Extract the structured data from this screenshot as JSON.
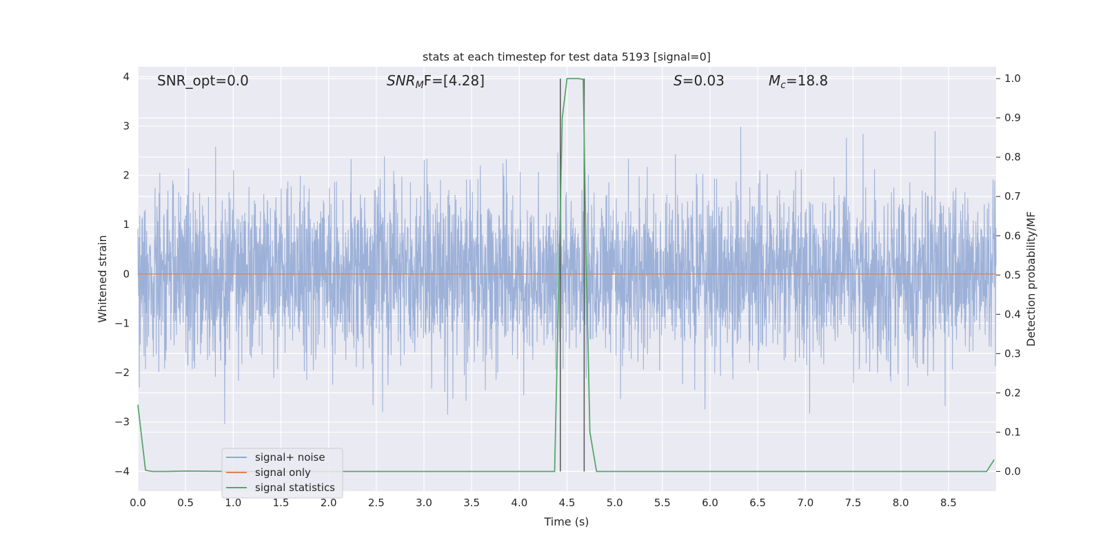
{
  "chart_data": {
    "type": "line",
    "title": "stats at each timestep for test data 5193 [signal=0]",
    "xlabel": "Time (s)",
    "ylabel_left": "Whitened strain",
    "ylabel_right": "Detection probability/MF",
    "xlim": [
      0.0,
      9.0
    ],
    "ylim_left": [
      -4.4,
      4.2
    ],
    "ylim_right": [
      -0.05,
      1.03
    ],
    "x_ticks": [
      "0.0",
      "0.5",
      "1.0",
      "1.5",
      "2.0",
      "2.5",
      "3.0",
      "3.5",
      "4.0",
      "4.5",
      "5.0",
      "5.5",
      "6.0",
      "6.5",
      "7.0",
      "7.5",
      "8.0",
      "8.5"
    ],
    "y_ticks_left": [
      "−4",
      "−3",
      "−2",
      "−1",
      "0",
      "1",
      "2",
      "3",
      "4"
    ],
    "y_ticks_right": [
      "0.0",
      "0.1",
      "0.2",
      "0.3",
      "0.4",
      "0.5",
      "0.6",
      "0.7",
      "0.8",
      "0.9",
      "1.0"
    ],
    "grid": true,
    "legend_position": "lower-left",
    "annotations": {
      "snr_opt": "SNR_opt=0.0",
      "snr_mf_base": "SNR",
      "snr_mf_sub": "M",
      "snr_mf_rest": "F=[4.28]",
      "s_base": "S",
      "s_rest": "=0.03",
      "mc_base": "M",
      "mc_sub": "c",
      "mc_rest": "=18.8"
    },
    "vertical_lines_x": [
      4.43,
      4.68
    ],
    "series": [
      {
        "name": "signal+ noise",
        "axis": "left",
        "color": "#8fa7d3",
        "description_values": "white noise, sample envelope approx ±2.2 (peaks to ±3.3)",
        "amplitude": 0.85,
        "peak_abs": 3.3
      },
      {
        "name": "signal only",
        "axis": "left",
        "color": "#dd8452",
        "x": [
          0.0,
          9.0
        ],
        "values": [
          0.0,
          0.0
        ]
      },
      {
        "name": "signal statistics",
        "axis": "right",
        "color": "#55a868",
        "x": [
          0.0,
          0.08,
          0.15,
          0.3,
          0.5,
          1.0,
          2.0,
          3.0,
          4.0,
          4.37,
          4.42,
          4.45,
          4.5,
          4.55,
          4.62,
          4.67,
          4.7,
          4.74,
          4.81,
          5.0,
          6.0,
          7.0,
          8.0,
          8.9,
          8.98
        ],
        "values": [
          0.17,
          0.003,
          0.0,
          0.0,
          0.001,
          0.0,
          0.0,
          0.0,
          0.0,
          0.0,
          0.55,
          0.9,
          1.0,
          1.0,
          1.0,
          0.998,
          0.55,
          0.1,
          0.0,
          0.0,
          0.0,
          0.0,
          0.0,
          0.0,
          0.03
        ]
      }
    ]
  }
}
